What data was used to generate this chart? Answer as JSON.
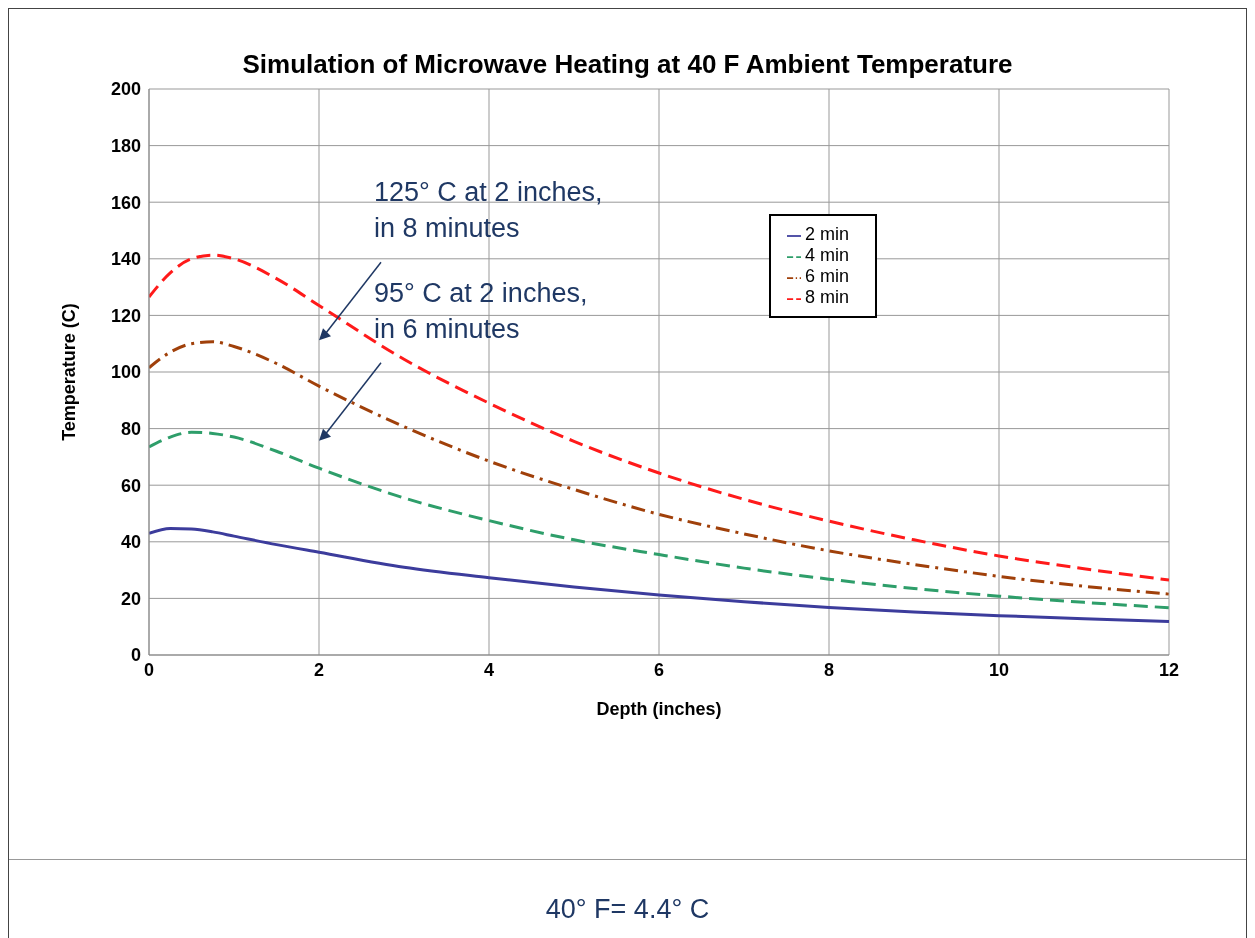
{
  "chart_data": {
    "type": "line",
    "title": "Simulation of Microwave Heating at 40 F Ambient Temperature",
    "xlabel": "Depth (inches)",
    "ylabel": "Temperature (C)",
    "x": [
      0,
      0.25,
      0.5,
      0.75,
      1,
      1.5,
      2,
      3,
      4,
      5,
      6,
      7,
      8,
      9,
      10,
      11,
      12
    ],
    "series": [
      {
        "name": "2 min",
        "color": "#3c3c9c",
        "line_style": "solid",
        "values": [
          43,
          44.7,
          44.5,
          43.5,
          42,
          39,
          36.3,
          31,
          27.3,
          24,
          21.2,
          18.8,
          16.8,
          15.2,
          13.9,
          12.8,
          11.8
        ]
      },
      {
        "name": "4 min",
        "color": "#2e9e6a",
        "line_style": "dashed",
        "values": [
          73.5,
          77,
          78.7,
          78.3,
          77,
          72,
          66,
          55.5,
          47.5,
          40.7,
          35.5,
          30.7,
          26.8,
          23.5,
          20.8,
          18.6,
          16.7
        ]
      },
      {
        "name": "6 min",
        "color": "#a0400a",
        "line_style": "dashdot",
        "values": [
          101.5,
          107,
          110,
          110.7,
          109,
          103,
          95,
          80.7,
          68.5,
          58.5,
          49.7,
          42.8,
          36.8,
          32,
          27.8,
          24.3,
          21.5
        ]
      },
      {
        "name": "8 min",
        "color": "#ff1a1a",
        "line_style": "dashed",
        "values": [
          126.5,
          135,
          140,
          141.3,
          140,
          133,
          123.5,
          104.5,
          89,
          75.5,
          64.3,
          55,
          47.3,
          40.7,
          35,
          30.5,
          26.5
        ]
      }
    ],
    "xlim": [
      0,
      12
    ],
    "xticks": [
      0,
      2,
      4,
      6,
      8,
      10,
      12
    ],
    "ylim": [
      0,
      200
    ],
    "yticks": [
      0,
      20,
      40,
      60,
      80,
      100,
      120,
      140,
      160,
      180,
      200
    ],
    "grid": true,
    "legend": "top right",
    "marker": "none",
    "annotations": [
      {
        "text": "125° C at 2 inches,\nin 8 minutes",
        "x": 2,
        "y": 125
      },
      {
        "text": "95° C at 2 inches,\nin 6 minutes",
        "x": 2,
        "y": 95
      },
      "40° F= 4.4° C"
    ]
  }
}
